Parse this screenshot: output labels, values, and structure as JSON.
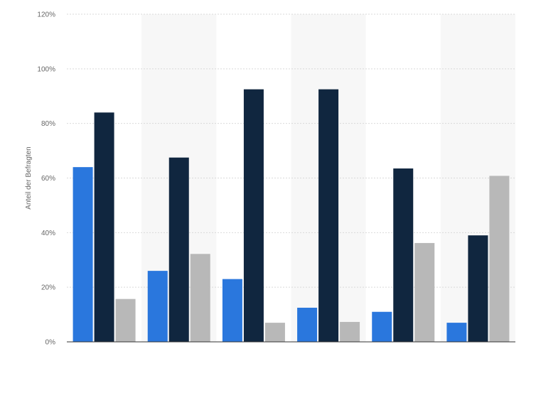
{
  "chart_data": {
    "type": "bar",
    "title": "",
    "xlabel": "",
    "ylabel": "Anteil der Befragten",
    "ylim": [
      0,
      120
    ],
    "yticks": [
      0,
      20,
      40,
      60,
      80,
      100,
      120
    ],
    "ytick_labels": [
      "0%",
      "20%",
      "40%",
      "60%",
      "80%",
      "100%",
      "120%"
    ],
    "grid": true,
    "legend": "none",
    "categories": [
      "",
      "",
      "",
      "",
      "",
      ""
    ],
    "series": [
      {
        "color": "#2a77dd",
        "values": [
          64,
          26,
          23,
          12.5,
          11,
          7
        ]
      },
      {
        "color": "#10263f",
        "values": [
          84,
          67.5,
          92.5,
          92.5,
          63.5,
          39
        ]
      },
      {
        "color": "#b8b8b8",
        "values": [
          15.7,
          32.2,
          7,
          7.3,
          36.2,
          60.8
        ]
      }
    ]
  }
}
